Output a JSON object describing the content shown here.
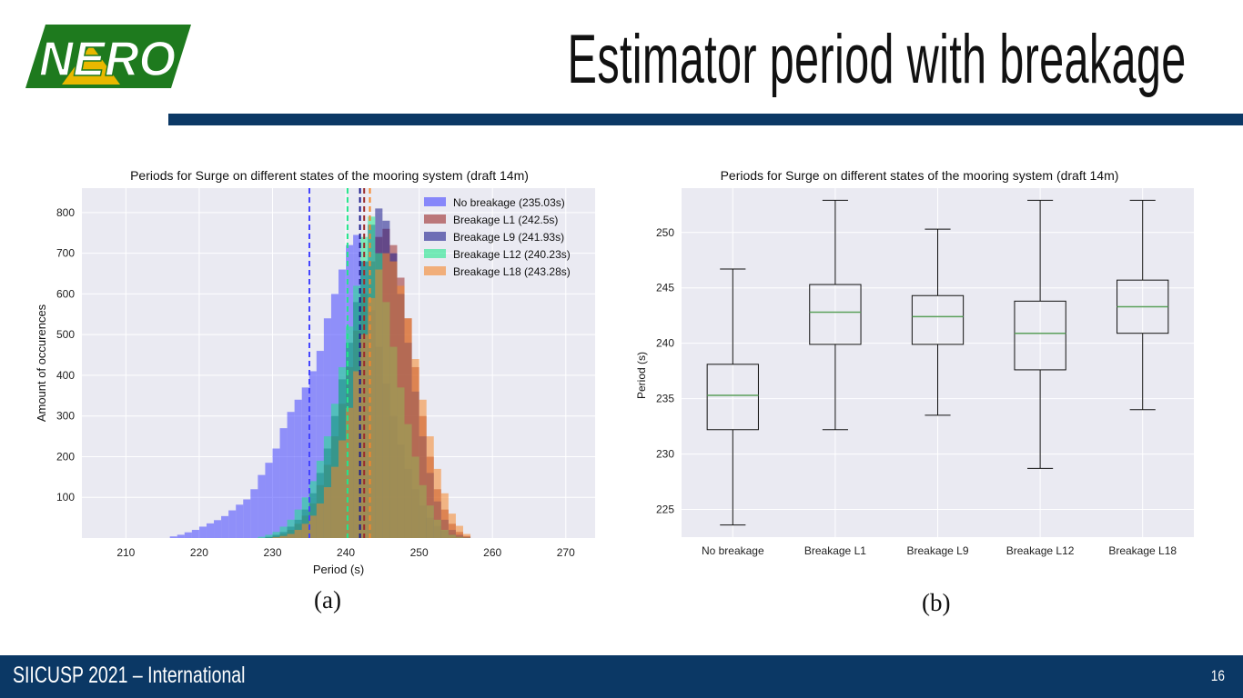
{
  "slide": {
    "title": "Estimator period with breakage",
    "logo_text": "NERO",
    "footer": "SIICUSP 2021 – International",
    "page_number": "16",
    "panel_labels": [
      "(a)",
      "(b)"
    ]
  },
  "colors": {
    "brand_navy": "#0b3865",
    "logo_green": "#1e7a1e",
    "logo_yellow": "#e8b800",
    "plot_bg": "#eaeaf2",
    "no_breakage": "#4444ff",
    "breakage_l1": "#9b2a2a",
    "breakage_l9": "#1a1a8c",
    "breakage_l12": "#22e68c",
    "breakage_l18": "#f5862a"
  },
  "chart_data": [
    {
      "type": "histogram",
      "title": "Periods for Surge on different states of the mooring system (draft 14m)",
      "xlabel": "Period (s)",
      "ylabel": "Amount of occurences",
      "xlim": [
        204,
        274
      ],
      "ylim": [
        0,
        860
      ],
      "xticks": [
        210,
        220,
        230,
        240,
        250,
        260,
        270
      ],
      "yticks": [
        100,
        200,
        300,
        400,
        500,
        600,
        700,
        800
      ],
      "grid": true,
      "legend_position": "top-right",
      "bin_start": 216,
      "bin_width": 1,
      "series": [
        {
          "name": "No breakage (235.03s)",
          "mean": 235.03,
          "color": "#4444ff",
          "counts": [
            4,
            8,
            14,
            20,
            28,
            36,
            44,
            54,
            68,
            82,
            95,
            120,
            155,
            185,
            220,
            270,
            310,
            340,
            370,
            410,
            460,
            540,
            600,
            660,
            720,
            745,
            680,
            560,
            470,
            380,
            300,
            230,
            170,
            120,
            80,
            50,
            30,
            18,
            10,
            5,
            2
          ]
        },
        {
          "name": "Breakage L1 (242.5s)",
          "mean": 242.5,
          "color": "#9b2a2a",
          "counts": [
            0,
            0,
            0,
            0,
            0,
            0,
            0,
            0,
            0,
            0,
            0,
            0,
            0,
            2,
            5,
            10,
            20,
            35,
            55,
            85,
            130,
            180,
            250,
            330,
            420,
            510,
            600,
            680,
            740,
            760,
            720,
            640,
            540,
            420,
            300,
            200,
            120,
            70,
            35,
            15,
            5
          ]
        },
        {
          "name": "Breakage L9 (241.93s)",
          "mean": 241.93,
          "color": "#1a1a8c",
          "counts": [
            0,
            0,
            0,
            0,
            0,
            0,
            0,
            0,
            0,
            0,
            0,
            0,
            0,
            3,
            8,
            15,
            28,
            45,
            70,
            110,
            160,
            220,
            300,
            390,
            480,
            580,
            680,
            770,
            810,
            780,
            700,
            600,
            480,
            360,
            250,
            160,
            90,
            45,
            20,
            8,
            3
          ]
        },
        {
          "name": "Breakage L12 (240.23s)",
          "mean": 240.23,
          "color": "#22e68c",
          "counts": [
            0,
            0,
            0,
            0,
            0,
            0,
            0,
            0,
            0,
            0,
            0,
            0,
            3,
            8,
            15,
            28,
            45,
            70,
            100,
            140,
            190,
            250,
            330,
            420,
            520,
            620,
            740,
            790,
            700,
            580,
            470,
            370,
            280,
            200,
            130,
            80,
            45,
            20,
            8,
            3,
            1
          ]
        },
        {
          "name": "Breakage L18 (243.28s)",
          "mean": 243.28,
          "color": "#f5862a",
          "counts": [
            0,
            0,
            0,
            0,
            0,
            0,
            0,
            0,
            0,
            0,
            0,
            0,
            0,
            0,
            2,
            5,
            10,
            20,
            35,
            55,
            85,
            125,
            175,
            240,
            320,
            410,
            500,
            590,
            660,
            700,
            680,
            620,
            540,
            440,
            340,
            250,
            170,
            110,
            60,
            30,
            10
          ]
        }
      ]
    },
    {
      "type": "box",
      "title": "Periods for Surge on different states of the mooring system (draft 14m)",
      "xlabel": "",
      "ylabel": "Period (s)",
      "ylim": [
        222.5,
        254
      ],
      "yticks": [
        225,
        230,
        235,
        240,
        245,
        250
      ],
      "grid": true,
      "categories": [
        "No breakage",
        "Breakage L1",
        "Breakage L9",
        "Breakage L12",
        "Breakage L18"
      ],
      "boxes": [
        {
          "whisker_low": 223.6,
          "q1": 232.2,
          "median": 235.3,
          "q3": 238.1,
          "whisker_high": 246.7
        },
        {
          "whisker_low": 232.2,
          "q1": 239.9,
          "median": 242.8,
          "q3": 245.3,
          "whisker_high": 252.9
        },
        {
          "whisker_low": 233.5,
          "q1": 239.9,
          "median": 242.4,
          "q3": 244.3,
          "whisker_high": 250.3
        },
        {
          "whisker_low": 228.7,
          "q1": 237.6,
          "median": 240.9,
          "q3": 243.8,
          "whisker_high": 252.9
        },
        {
          "whisker_low": 234.0,
          "q1": 240.9,
          "median": 243.3,
          "q3": 245.7,
          "whisker_high": 252.9
        }
      ]
    }
  ]
}
